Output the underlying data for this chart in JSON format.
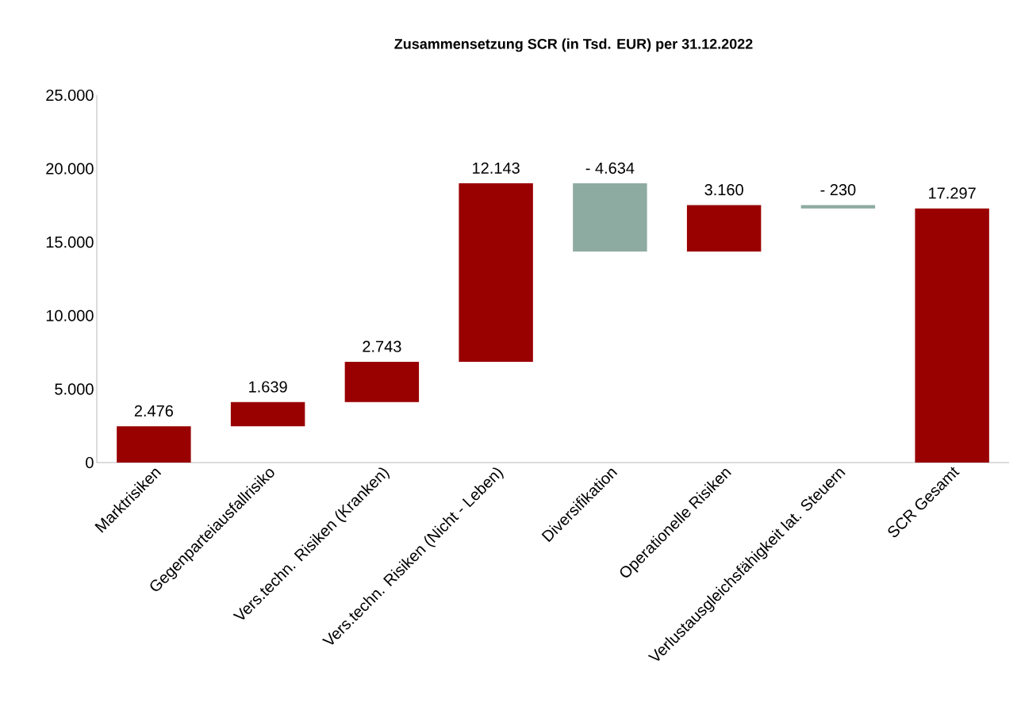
{
  "chart_data": {
    "type": "bar",
    "title": "Zusammensetzung SCR (in Tsd. EUR) per 31.12.2022",
    "categories": [
      "Marktrisiken",
      "Gegenparteiausfallrisiko",
      "Vers.techn. Risiken (Kranken)",
      "Vers.techn. Risiken (Nicht - Leben)",
      "Diversifikation",
      "Operationelle Risiken",
      "Verlustausgleichsfähigkeit lat. Steuern",
      "SCR Gesamt"
    ],
    "values": [
      2476,
      1639,
      2743,
      12143,
      -4634,
      3160,
      -230,
      17297
    ],
    "base": [
      0,
      2476,
      4115,
      6858,
      19001,
      14367,
      17527,
      0
    ],
    "colors": [
      "#990000",
      "#990000",
      "#990000",
      "#990000",
      "#8eaba1",
      "#990000",
      "#8eaba1",
      "#990000"
    ],
    "value_labels": [
      "2.476",
      "1.639",
      "2.743",
      "12.143",
      "- 4.634",
      "3.160",
      "- 230",
      "17.297"
    ],
    "ylim": [
      0,
      25000
    ],
    "yticks": [
      0,
      {
        "value": 5000,
        "label": "5.000"
      },
      {
        "value": 10000,
        "label": "10.000"
      },
      {
        "value": 15000,
        "label": "15.000"
      },
      {
        "value": 20000,
        "label": "20.000"
      },
      {
        "value": 25000,
        "label": "25.000"
      }
    ],
    "grid": false
  }
}
